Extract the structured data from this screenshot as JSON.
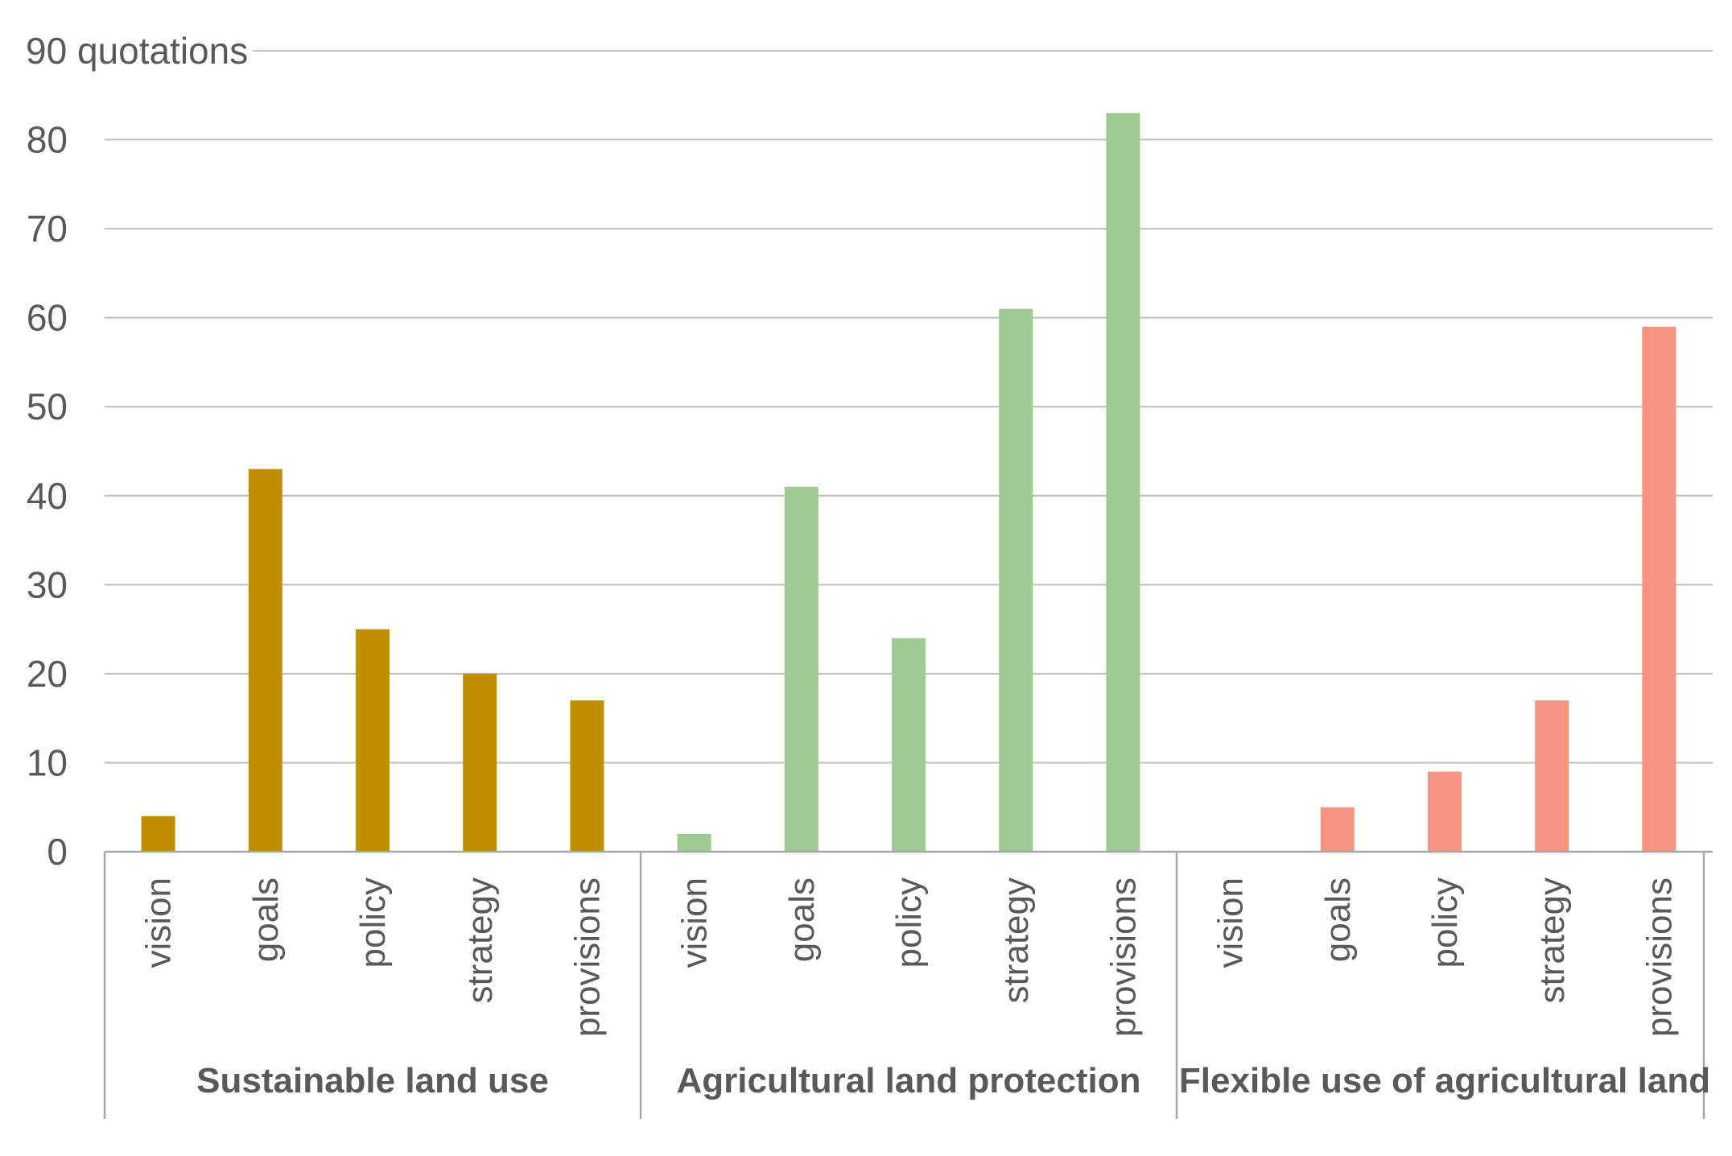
{
  "chart_data": {
    "type": "bar",
    "title": "",
    "ylabel": "",
    "ylim": [
      0,
      90
    ],
    "yticks": [
      0,
      10,
      20,
      30,
      40,
      50,
      60,
      70,
      80
    ],
    "top_tick_label": "90 quotations",
    "legend": "none",
    "grid": true,
    "groups": [
      {
        "name": "Sustainable land use",
        "color": "#bf8f00",
        "categories": [
          "vision",
          "goals",
          "policy",
          "strategy",
          "provisions"
        ],
        "values": [
          4,
          43,
          25,
          20,
          17
        ]
      },
      {
        "name": "Agricultural land protection",
        "color": "#9fcb93",
        "categories": [
          "vision",
          "goals",
          "policy",
          "strategy",
          "provisions"
        ],
        "values": [
          2,
          41,
          24,
          61,
          83
        ]
      },
      {
        "name": "Flexible use of agricultural land",
        "color": "#f79481",
        "categories": [
          "vision",
          "goals",
          "policy",
          "strategy",
          "provisions"
        ],
        "values": [
          0,
          5,
          9,
          17,
          59
        ]
      }
    ]
  }
}
